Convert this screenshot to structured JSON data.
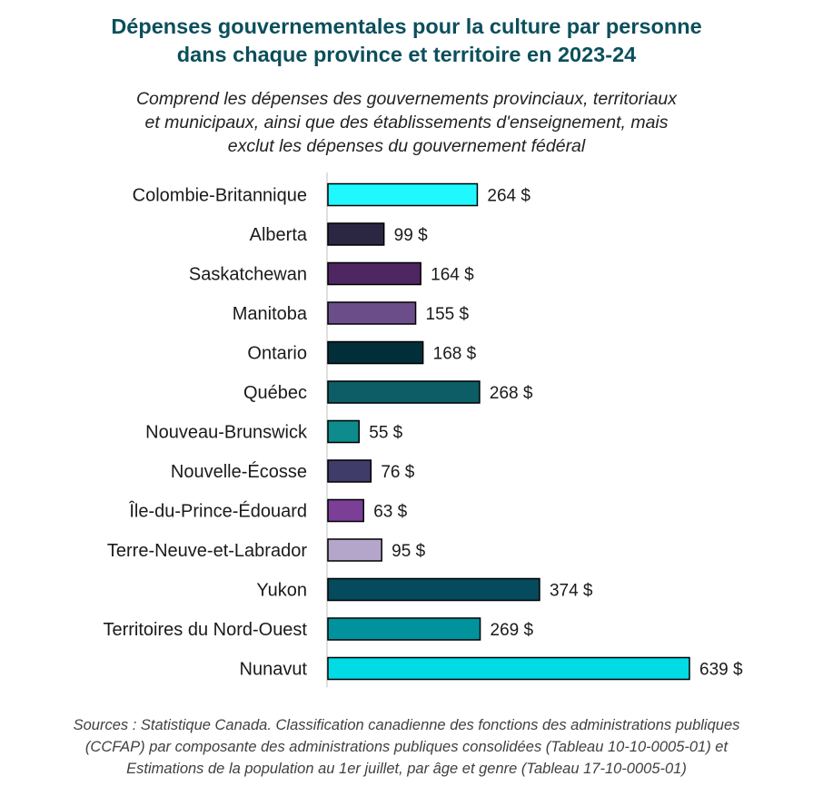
{
  "title_lines": [
    "Dépenses gouvernementales pour la culture par personne",
    "dans chaque province et territoire en 2023-24"
  ],
  "subtitle_lines": [
    "Comprend les dépenses des gouvernements provinciaux, territoriaux",
    "et municipaux, ainsi que des établissements d'enseignement, mais",
    "exclut les dépenses du gouvernement fédéral"
  ],
  "sources_lines": [
    "Sources : Statistique Canada. Classification canadienne des fonctions des administrations publiques",
    "(CCFAP) par composante des administrations publiques consolidées (Tableau 10-10-0005-01) et",
    "Estimations de la population au 1er juillet, par âge et genre (Tableau 17-10-0005-01)"
  ],
  "chart_data": {
    "type": "bar",
    "orientation": "horizontal",
    "categories": [
      "Colombie-Britannique",
      "Alberta",
      "Saskatchewan",
      "Manitoba",
      "Ontario",
      "Québec",
      "Nouveau-Brunswick",
      "Nouvelle-Écosse",
      "Île-du-Prince-Édouard",
      "Terre-Neuve-et-Labrador",
      "Yukon",
      "Territoires du Nord-Ouest",
      "Nunavut"
    ],
    "values": [
      264,
      99,
      164,
      155,
      168,
      268,
      55,
      76,
      63,
      95,
      374,
      269,
      639
    ],
    "value_labels": [
      "264 $",
      "99 $",
      "164 $",
      "155 $",
      "168 $",
      "268 $",
      "55 $",
      "76 $",
      "63 $",
      "95 $",
      "374 $",
      "269 $",
      "639 $"
    ],
    "colors": [
      "#1ff8ff",
      "#2b2641",
      "#4e2661",
      "#6b4e89",
      "#022e3a",
      "#0c5d66",
      "#0e8b8c",
      "#3f3c69",
      "#7b3f98",
      "#b4a6cb",
      "#064a5e",
      "#00939e",
      "#00dbe6"
    ],
    "xlim": [
      0,
      639
    ],
    "grid": false,
    "legend": "none"
  }
}
